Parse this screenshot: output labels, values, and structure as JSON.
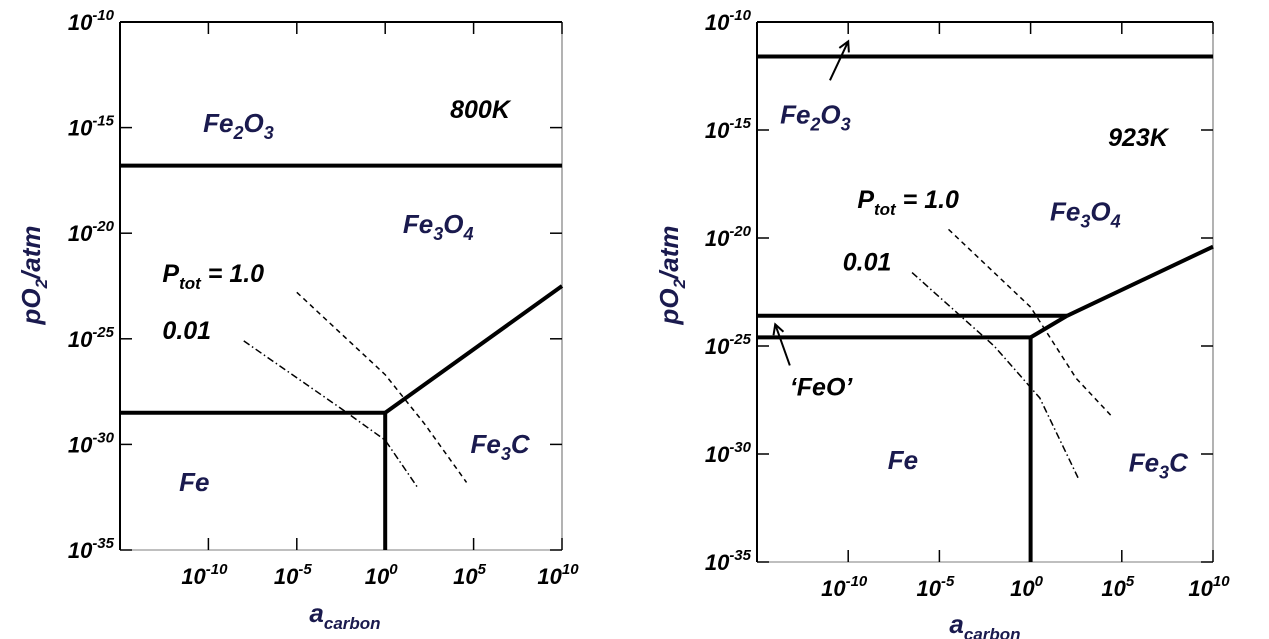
{
  "chart_data": [
    {
      "type": "line",
      "temperature_label": "800K",
      "xlabel": "a",
      "xlabel_sub": "carbon",
      "ylabel": "pO",
      "ylabel_sub": "2",
      "ylabel_tail": "/atm",
      "x_scale": "log10",
      "y_scale": "log10",
      "xlim_exp": [
        -15,
        10
      ],
      "ylim_exp": [
        -35,
        -10
      ],
      "x_ticks": [
        {
          "base": "10",
          "exp": "-10",
          "v": -10
        },
        {
          "base": "10",
          "exp": "-5",
          "v": -5
        },
        {
          "base": "10",
          "exp": "0",
          "v": 0
        },
        {
          "base": "10",
          "exp": "5",
          "v": 5
        },
        {
          "base": "10",
          "exp": "10",
          "v": 10
        }
      ],
      "y_ticks": [
        {
          "base": "10",
          "exp": "-10",
          "v": -10
        },
        {
          "base": "10",
          "exp": "-15",
          "v": -15
        },
        {
          "base": "10",
          "exp": "-20",
          "v": -20
        },
        {
          "base": "10",
          "exp": "-25",
          "v": -25
        },
        {
          "base": "10",
          "exp": "-30",
          "v": -30
        },
        {
          "base": "10",
          "exp": "-35",
          "v": -35
        }
      ],
      "regions": [
        {
          "main": "Fe",
          "sub": "2",
          "tail": "O",
          "sub2": "3",
          "x": -8.3,
          "y": -15.2
        },
        {
          "main": "Fe",
          "sub": "3",
          "tail": "O",
          "sub2": "4",
          "x": 3.0,
          "y": -20.0
        },
        {
          "main": "Fe",
          "sub": "3",
          "tail": "C",
          "sub2": "",
          "x": 6.5,
          "y": -30.4
        },
        {
          "main": "Fe",
          "sub": "",
          "tail": "",
          "sub2": "",
          "x": -10.8,
          "y": -32.2
        }
      ],
      "boundaries": [
        {
          "name": "Fe2O3/Fe3O4",
          "style": "solid",
          "points": [
            [
              -15,
              -16.8
            ],
            [
              10,
              -16.8
            ]
          ]
        },
        {
          "name": "Fe/Fe3O4",
          "style": "solid",
          "points": [
            [
              -15,
              -28.5
            ],
            [
              0,
              -28.5
            ]
          ]
        },
        {
          "name": "Fe3O4/Fe3C",
          "style": "solid",
          "points": [
            [
              0,
              -28.5
            ],
            [
              10,
              -22.5
            ]
          ]
        },
        {
          "name": "Fe/Fe3C",
          "style": "solid",
          "points": [
            [
              0,
              -28.5
            ],
            [
              0,
              -35
            ]
          ]
        }
      ],
      "series": [
        {
          "name": "P",
          "name_sub": "tot",
          "name_tail": " = 1.0",
          "style": "dashed",
          "points": [
            [
              -5,
              -22.8
            ],
            [
              0,
              -26.7
            ],
            [
              2.2,
              -29.0
            ],
            [
              4.6,
              -31.8
            ]
          ]
        },
        {
          "name": "0.01",
          "style": "dashdot",
          "points": [
            [
              -8,
              -25.1
            ],
            [
              -2.5,
              -28.3
            ],
            [
              0,
              -29.8
            ],
            [
              1.8,
              -32.0
            ]
          ]
        }
      ],
      "annotations": [
        {
          "text": "P",
          "sub": "tot",
          "tail": " = 1.0",
          "x": -12.6,
          "y": -22.3
        },
        {
          "text": "0.01",
          "sub": "",
          "tail": "",
          "x": -12.6,
          "y": -25.0
        }
      ]
    },
    {
      "type": "line",
      "temperature_label": "923K",
      "xlabel": "a",
      "xlabel_sub": "carbon",
      "ylabel": "pO",
      "ylabel_sub": "2",
      "ylabel_tail": "/atm",
      "x_scale": "log10",
      "y_scale": "log10",
      "xlim_exp": [
        -15,
        10
      ],
      "ylim_exp": [
        -35,
        -10
      ],
      "x_ticks": [
        {
          "base": "10",
          "exp": "-10",
          "v": -10
        },
        {
          "base": "10",
          "exp": "-5",
          "v": -5
        },
        {
          "base": "10",
          "exp": "0",
          "v": 0
        },
        {
          "base": "10",
          "exp": "5",
          "v": 5
        },
        {
          "base": "10",
          "exp": "10",
          "v": 10
        }
      ],
      "y_ticks": [
        {
          "base": "10",
          "exp": "-10",
          "v": -10
        },
        {
          "base": "10",
          "exp": "-15",
          "v": -15
        },
        {
          "base": "10",
          "exp": "-20",
          "v": -20
        },
        {
          "base": "10",
          "exp": "-25",
          "v": -25
        },
        {
          "base": "10",
          "exp": "-30",
          "v": -30
        },
        {
          "base": "10",
          "exp": "-35",
          "v": -35
        }
      ],
      "regions": [
        {
          "main": "Fe",
          "sub": "2",
          "tail": "O",
          "sub2": "3",
          "x": -11.8,
          "y": -14.7
        },
        {
          "main": "Fe",
          "sub": "3",
          "tail": "O",
          "sub2": "4",
          "x": 3.0,
          "y": -19.2
        },
        {
          "main": "Fe",
          "sub": "3",
          "tail": "C",
          "sub2": "",
          "x": 7.0,
          "y": -30.8
        },
        {
          "main": "Fe",
          "sub": "",
          "tail": "",
          "sub2": "",
          "x": -7.0,
          "y": -30.7
        }
      ],
      "boundaries": [
        {
          "name": "Fe2O3/Fe3O4",
          "style": "solid",
          "points": [
            [
              -15,
              -11.6
            ],
            [
              10,
              -11.6
            ]
          ]
        },
        {
          "name": "FeO/Fe3O4",
          "style": "solid",
          "points": [
            [
              -15,
              -23.6
            ],
            [
              2,
              -23.6
            ]
          ]
        },
        {
          "name": "Fe3O4/Fe3C",
          "style": "solid",
          "points": [
            [
              2,
              -23.6
            ],
            [
              10,
              -20.4
            ]
          ]
        },
        {
          "name": "Fe/FeO",
          "style": "solid",
          "points": [
            [
              -15,
              -24.6
            ],
            [
              0,
              -24.6
            ]
          ]
        },
        {
          "name": "FeO/Fe3C",
          "style": "solid",
          "points": [
            [
              0,
              -24.6
            ],
            [
              2,
              -23.6
            ]
          ]
        },
        {
          "name": "Fe/Fe3C",
          "style": "solid",
          "points": [
            [
              0,
              -24.6
            ],
            [
              0,
              -35
            ]
          ]
        }
      ],
      "series": [
        {
          "name": "P",
          "name_sub": "tot",
          "name_tail": " = 1.0",
          "style": "dashed",
          "points": [
            [
              -4.5,
              -19.6
            ],
            [
              0,
              -23.2
            ],
            [
              2.5,
              -26.5
            ],
            [
              4.5,
              -28.3
            ]
          ]
        },
        {
          "name": "0.01",
          "style": "dashdot",
          "points": [
            [
              -6.5,
              -21.6
            ],
            [
              -2,
              -25.0
            ],
            [
              0.5,
              -27.4
            ],
            [
              2.6,
              -31.1
            ]
          ]
        }
      ],
      "annotations": [
        {
          "text": "P",
          "sub": "tot",
          "tail": " = 1.0",
          "x": -9.5,
          "y": -18.6
        },
        {
          "text": "0.01",
          "sub": "",
          "tail": "",
          "x": -10.3,
          "y": -21.5
        },
        {
          "text": "‘FeO’",
          "sub": "",
          "tail": "",
          "x": -13.2,
          "y": -27.3
        }
      ],
      "arrows": [
        {
          "from": [
            -11,
            -12.7
          ],
          "to": [
            -10,
            -10.9
          ]
        },
        {
          "from": [
            -13.2,
            -25.9
          ],
          "to": [
            -14.0,
            -24.0
          ]
        }
      ]
    }
  ]
}
